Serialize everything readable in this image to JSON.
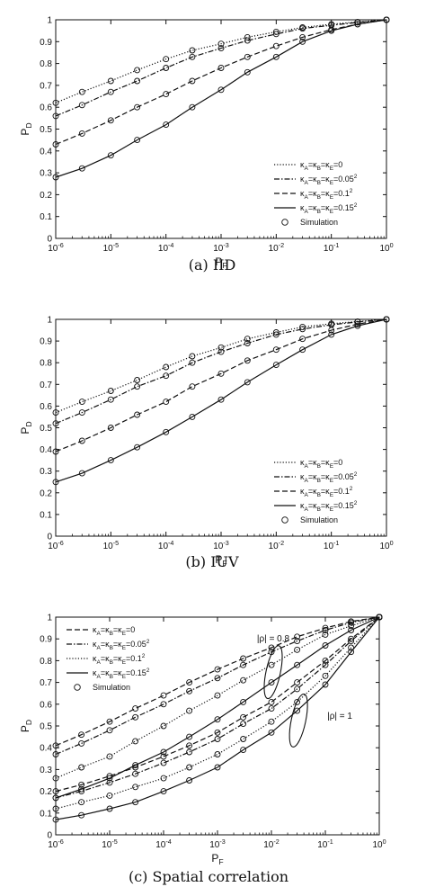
{
  "chart_data": [
    {
      "type": "line",
      "caption": "(a) IID",
      "xlabel": "P_F",
      "ylabel": "P_D",
      "xscale": "log",
      "xlim": [
        1e-06,
        1
      ],
      "ylim": [
        0,
        1
      ],
      "xticks": [
        "10^-6",
        "10^-5",
        "10^-4",
        "10^-3",
        "10^-2",
        "10^-1",
        "10^0"
      ],
      "yticks": [
        "0",
        "0.1",
        "0.2",
        "0.3",
        "0.4",
        "0.5",
        "0.6",
        "0.7",
        "0.8",
        "0.9",
        "1"
      ],
      "legend_position": "bottom-right",
      "legend": [
        {
          "label": "κ_A=κ_B=κ_E=0",
          "style": "dotted"
        },
        {
          "label": "κ_A=κ_B=κ_E=0.05^2",
          "style": "dashdot"
        },
        {
          "label": "κ_A=κ_B=κ_E=0.1^2",
          "style": "dashed"
        },
        {
          "label": "κ_A=κ_B=κ_E=0.15^2",
          "style": "solid"
        },
        {
          "label": "Simulation",
          "style": "marker"
        }
      ],
      "series": [
        {
          "style": "dotted",
          "x": [
            1e-06,
            3e-06,
            1e-05,
            3e-05,
            0.0001,
            0.0003,
            0.001,
            0.003,
            0.01,
            0.03,
            0.1,
            0.3,
            1
          ],
          "y": [
            0.62,
            0.67,
            0.72,
            0.77,
            0.82,
            0.86,
            0.89,
            0.92,
            0.945,
            0.965,
            0.98,
            0.99,
            1.0
          ]
        },
        {
          "style": "dashdot",
          "x": [
            1e-06,
            3e-06,
            1e-05,
            3e-05,
            0.0001,
            0.0003,
            0.001,
            0.003,
            0.01,
            0.03,
            0.1,
            0.3,
            1
          ],
          "y": [
            0.56,
            0.61,
            0.67,
            0.72,
            0.78,
            0.83,
            0.87,
            0.905,
            0.935,
            0.96,
            0.975,
            0.988,
            1.0
          ]
        },
        {
          "style": "dashed",
          "x": [
            1e-06,
            3e-06,
            1e-05,
            3e-05,
            0.0001,
            0.0003,
            0.001,
            0.003,
            0.01,
            0.03,
            0.1,
            0.3,
            1
          ],
          "y": [
            0.43,
            0.48,
            0.54,
            0.6,
            0.66,
            0.72,
            0.78,
            0.83,
            0.88,
            0.92,
            0.955,
            0.98,
            1.0
          ]
        },
        {
          "style": "solid",
          "x": [
            1e-06,
            3e-06,
            1e-05,
            3e-05,
            0.0001,
            0.0003,
            0.001,
            0.003,
            0.01,
            0.03,
            0.1,
            0.3,
            1
          ],
          "y": [
            0.28,
            0.32,
            0.38,
            0.45,
            0.52,
            0.6,
            0.68,
            0.76,
            0.83,
            0.9,
            0.95,
            0.98,
            1.0
          ]
        }
      ]
    },
    {
      "type": "line",
      "caption": "(b) IUV",
      "xlabel": "P_F",
      "ylabel": "P_D",
      "xscale": "log",
      "xlim": [
        1e-06,
        1
      ],
      "ylim": [
        0,
        1
      ],
      "xticks": [
        "10^-6",
        "10^-5",
        "10^-4",
        "10^-3",
        "10^-2",
        "10^-1",
        "10^0"
      ],
      "yticks": [
        "0",
        "0.1",
        "0.2",
        "0.3",
        "0.4",
        "0.5",
        "0.6",
        "0.7",
        "0.8",
        "0.9",
        "1"
      ],
      "legend_position": "bottom-right",
      "legend": [
        {
          "label": "κ_A=κ_B=κ_E=0",
          "style": "dotted"
        },
        {
          "label": "κ_A=κ_B=κ_E=0.05^2",
          "style": "dashdot"
        },
        {
          "label": "κ_A=κ_B=κ_E=0.1^2",
          "style": "dashed"
        },
        {
          "label": "κ_A=κ_B=κ_E=0.15^2",
          "style": "solid"
        },
        {
          "label": "Simulation",
          "style": "marker"
        }
      ],
      "series": [
        {
          "style": "dotted",
          "x": [
            1e-06,
            3e-06,
            1e-05,
            3e-05,
            0.0001,
            0.0003,
            0.001,
            0.003,
            0.01,
            0.03,
            0.1,
            0.3,
            1
          ],
          "y": [
            0.57,
            0.62,
            0.67,
            0.72,
            0.78,
            0.83,
            0.87,
            0.91,
            0.94,
            0.965,
            0.98,
            0.99,
            1.0
          ]
        },
        {
          "style": "dashdot",
          "x": [
            1e-06,
            3e-06,
            1e-05,
            3e-05,
            0.0001,
            0.0003,
            0.001,
            0.003,
            0.01,
            0.03,
            0.1,
            0.3,
            1
          ],
          "y": [
            0.52,
            0.57,
            0.63,
            0.69,
            0.74,
            0.8,
            0.85,
            0.89,
            0.93,
            0.955,
            0.975,
            0.988,
            1.0
          ]
        },
        {
          "style": "dashed",
          "x": [
            1e-06,
            3e-06,
            1e-05,
            3e-05,
            0.0001,
            0.0003,
            0.001,
            0.003,
            0.01,
            0.03,
            0.1,
            0.3,
            1
          ],
          "y": [
            0.39,
            0.44,
            0.5,
            0.56,
            0.62,
            0.69,
            0.75,
            0.81,
            0.86,
            0.91,
            0.95,
            0.978,
            1.0
          ]
        },
        {
          "style": "solid",
          "x": [
            1e-06,
            3e-06,
            1e-05,
            3e-05,
            0.0001,
            0.0003,
            0.001,
            0.003,
            0.01,
            0.03,
            0.1,
            0.3,
            1
          ],
          "y": [
            0.25,
            0.29,
            0.35,
            0.41,
            0.48,
            0.55,
            0.63,
            0.71,
            0.79,
            0.86,
            0.93,
            0.97,
            1.0
          ]
        }
      ]
    },
    {
      "type": "line",
      "caption": "(c) Spatial correlation",
      "xlabel": "P_F",
      "ylabel": "P_D",
      "xscale": "log",
      "xlim": [
        1e-06,
        1
      ],
      "ylim": [
        0,
        1
      ],
      "xticks": [
        "10^-6",
        "10^-5",
        "10^-4",
        "10^-3",
        "10^-2",
        "10^-1",
        "10^0"
      ],
      "yticks": [
        "0",
        "0.1",
        "0.2",
        "0.3",
        "0.4",
        "0.5",
        "0.6",
        "0.7",
        "0.8",
        "0.9",
        "1"
      ],
      "legend_position": "top-left",
      "legend": [
        {
          "label": "κ_A=κ_B=κ_E=0",
          "style": "dashed"
        },
        {
          "label": "κ_A=κ_B=κ_E=0.05^2",
          "style": "dashdot"
        },
        {
          "label": "κ_A=κ_B=κ_E=0.1^2",
          "style": "dotted"
        },
        {
          "label": "κ_A=κ_B=κ_E=0.15^2",
          "style": "solid"
        },
        {
          "label": "Simulation",
          "style": "marker"
        }
      ],
      "annotations": [
        {
          "text": "|ρ| = 0.8",
          "x": 0.01,
          "y": 0.83
        },
        {
          "text": "|ρ| = 1",
          "x": 0.04,
          "y": 0.55
        }
      ],
      "series": [
        {
          "group": "rho=0.8",
          "style": "dashed",
          "x": [
            1e-06,
            3e-06,
            1e-05,
            3e-05,
            0.0001,
            0.0003,
            0.001,
            0.003,
            0.01,
            0.03,
            0.1,
            0.3,
            1
          ],
          "y": [
            0.41,
            0.46,
            0.52,
            0.58,
            0.64,
            0.7,
            0.76,
            0.81,
            0.86,
            0.91,
            0.95,
            0.98,
            1.0
          ]
        },
        {
          "group": "rho=0.8",
          "style": "dashdot",
          "x": [
            1e-06,
            3e-06,
            1e-05,
            3e-05,
            0.0001,
            0.0003,
            0.001,
            0.003,
            0.01,
            0.03,
            0.1,
            0.3,
            1
          ],
          "y": [
            0.37,
            0.42,
            0.48,
            0.54,
            0.6,
            0.66,
            0.72,
            0.78,
            0.84,
            0.89,
            0.94,
            0.975,
            1.0
          ]
        },
        {
          "group": "rho=0.8",
          "style": "dotted",
          "x": [
            1e-06,
            3e-06,
            1e-05,
            3e-05,
            0.0001,
            0.0003,
            0.001,
            0.003,
            0.01,
            0.03,
            0.1,
            0.3,
            1
          ],
          "y": [
            0.26,
            0.31,
            0.36,
            0.43,
            0.5,
            0.57,
            0.64,
            0.71,
            0.78,
            0.85,
            0.92,
            0.96,
            1.0
          ]
        },
        {
          "group": "rho=0.8",
          "style": "solid",
          "x": [
            1e-06,
            3e-06,
            1e-05,
            3e-05,
            0.0001,
            0.0003,
            0.001,
            0.003,
            0.01,
            0.03,
            0.1,
            0.3,
            1
          ],
          "y": [
            0.17,
            0.21,
            0.26,
            0.32,
            0.38,
            0.45,
            0.53,
            0.61,
            0.7,
            0.78,
            0.87,
            0.94,
            1.0
          ]
        },
        {
          "group": "rho=1",
          "style": "dashed",
          "x": [
            1e-06,
            3e-06,
            1e-05,
            3e-05,
            0.0001,
            0.0003,
            0.001,
            0.003,
            0.01,
            0.03,
            0.1,
            0.3,
            1
          ],
          "y": [
            0.2,
            0.23,
            0.27,
            0.31,
            0.36,
            0.41,
            0.47,
            0.54,
            0.61,
            0.7,
            0.8,
            0.9,
            1.0
          ]
        },
        {
          "group": "rho=1",
          "style": "dashdot",
          "x": [
            1e-06,
            3e-06,
            1e-05,
            3e-05,
            0.0001,
            0.0003,
            0.001,
            0.003,
            0.01,
            0.03,
            0.1,
            0.3,
            1
          ],
          "y": [
            0.17,
            0.2,
            0.24,
            0.28,
            0.33,
            0.38,
            0.44,
            0.51,
            0.58,
            0.67,
            0.78,
            0.89,
            1.0
          ]
        },
        {
          "group": "rho=1",
          "style": "dotted",
          "x": [
            1e-06,
            3e-06,
            1e-05,
            3e-05,
            0.0001,
            0.0003,
            0.001,
            0.003,
            0.01,
            0.03,
            0.1,
            0.3,
            1
          ],
          "y": [
            0.12,
            0.15,
            0.18,
            0.22,
            0.26,
            0.31,
            0.37,
            0.44,
            0.52,
            0.61,
            0.73,
            0.86,
            1.0
          ]
        },
        {
          "group": "rho=1",
          "style": "solid",
          "x": [
            1e-06,
            3e-06,
            1e-05,
            3e-05,
            0.0001,
            0.0003,
            0.001,
            0.003,
            0.01,
            0.03,
            0.1,
            0.3,
            1
          ],
          "y": [
            0.07,
            0.09,
            0.12,
            0.15,
            0.2,
            0.25,
            0.31,
            0.39,
            0.47,
            0.57,
            0.69,
            0.84,
            1.0
          ]
        }
      ]
    }
  ]
}
